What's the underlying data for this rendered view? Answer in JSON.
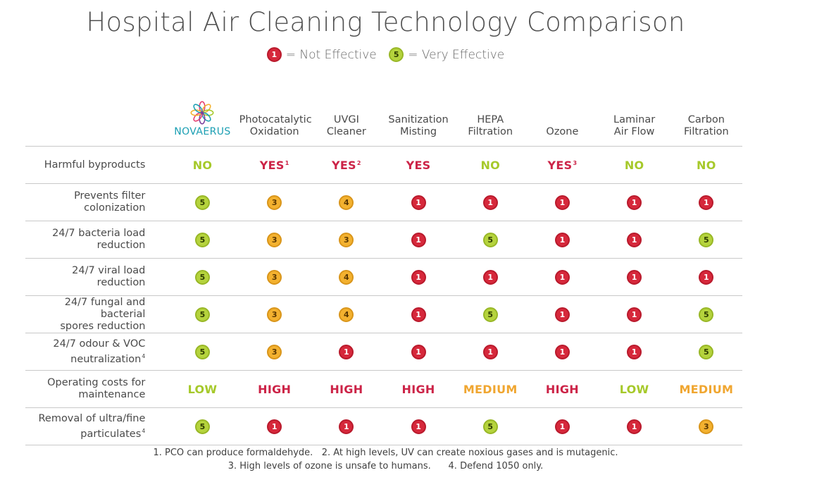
{
  "title": "Hospital Air Cleaning Technology Comparison",
  "legend": {
    "low": {
      "value": "1",
      "text": "= Not Effective"
    },
    "high": {
      "value": "5",
      "text": "= Very Effective"
    }
  },
  "colors": {
    "rating_1": "#d6283b",
    "rating_3": "#f3b12f",
    "rating_4": "#f3b12f",
    "rating_5": "#b5d33d",
    "text_green": "#a6c92a",
    "text_red": "#cc2347",
    "text_orange": "#f0a630",
    "brand": "#1b9fb3"
  },
  "columns": [
    {
      "label": "NOVAERUS",
      "logo": "novaerus-flower-logo"
    },
    {
      "label": "Photocatalytic\nOxidation"
    },
    {
      "label": "UVGI\nCleaner"
    },
    {
      "label": "Sanitization\nMisting"
    },
    {
      "label": "HEPA\nFiltration"
    },
    {
      "label": "Ozone"
    },
    {
      "label": "Laminar\nAir Flow"
    },
    {
      "label": "Carbon\nFiltration"
    }
  ],
  "rows": [
    {
      "label": "Harmful byproducts",
      "note": "",
      "kind": "text",
      "values": [
        {
          "text": "NO",
          "color": "green",
          "sup": ""
        },
        {
          "text": "YES",
          "color": "red",
          "sup": "1"
        },
        {
          "text": "YES",
          "color": "red",
          "sup": "2"
        },
        {
          "text": "YES",
          "color": "red",
          "sup": ""
        },
        {
          "text": "NO",
          "color": "green",
          "sup": ""
        },
        {
          "text": "YES",
          "color": "red",
          "sup": "3"
        },
        {
          "text": "NO",
          "color": "green",
          "sup": ""
        },
        {
          "text": "NO",
          "color": "green",
          "sup": ""
        }
      ]
    },
    {
      "label": "Prevents filter\ncolonization",
      "note": "",
      "kind": "rating",
      "values": [
        5,
        3,
        4,
        1,
        1,
        1,
        1,
        1
      ]
    },
    {
      "label": "24/7 bacteria load\nreduction",
      "note": "",
      "kind": "rating",
      "values": [
        5,
        3,
        3,
        1,
        5,
        1,
        1,
        5
      ]
    },
    {
      "label": "24/7 viral load reduction",
      "note": "",
      "kind": "rating",
      "values": [
        5,
        3,
        4,
        1,
        1,
        1,
        1,
        1
      ]
    },
    {
      "label": "24/7 fungal and bacterial\nspores reduction",
      "note": "",
      "kind": "rating",
      "values": [
        5,
        3,
        4,
        1,
        5,
        1,
        1,
        5
      ]
    },
    {
      "label": "24/7 odour & VOC\nneutralization",
      "note": "4",
      "kind": "rating",
      "values": [
        5,
        3,
        1,
        1,
        1,
        1,
        1,
        5
      ]
    },
    {
      "label": "Operating costs for\nmaintenance",
      "note": "",
      "kind": "text",
      "values": [
        {
          "text": "LOW",
          "color": "green",
          "sup": ""
        },
        {
          "text": "HIGH",
          "color": "red",
          "sup": ""
        },
        {
          "text": "HIGH",
          "color": "red",
          "sup": ""
        },
        {
          "text": "HIGH",
          "color": "red",
          "sup": ""
        },
        {
          "text": "MEDIUM",
          "color": "orange",
          "sup": ""
        },
        {
          "text": "HIGH",
          "color": "red",
          "sup": ""
        },
        {
          "text": "LOW",
          "color": "green",
          "sup": ""
        },
        {
          "text": "MEDIUM",
          "color": "orange",
          "sup": ""
        }
      ]
    },
    {
      "label": "Removal of ultra/fine\nparticulates",
      "note": "4",
      "kind": "rating",
      "values": [
        5,
        1,
        1,
        1,
        5,
        1,
        1,
        3
      ]
    }
  ],
  "footnotes": {
    "line1": [
      "1. PCO can produce formaldehyde.",
      "2. At high levels, UV can create noxious gases and is mutagenic."
    ],
    "line2": [
      "3. High levels of ozone is unsafe to humans.",
      "4. Defend 1050 only."
    ]
  }
}
